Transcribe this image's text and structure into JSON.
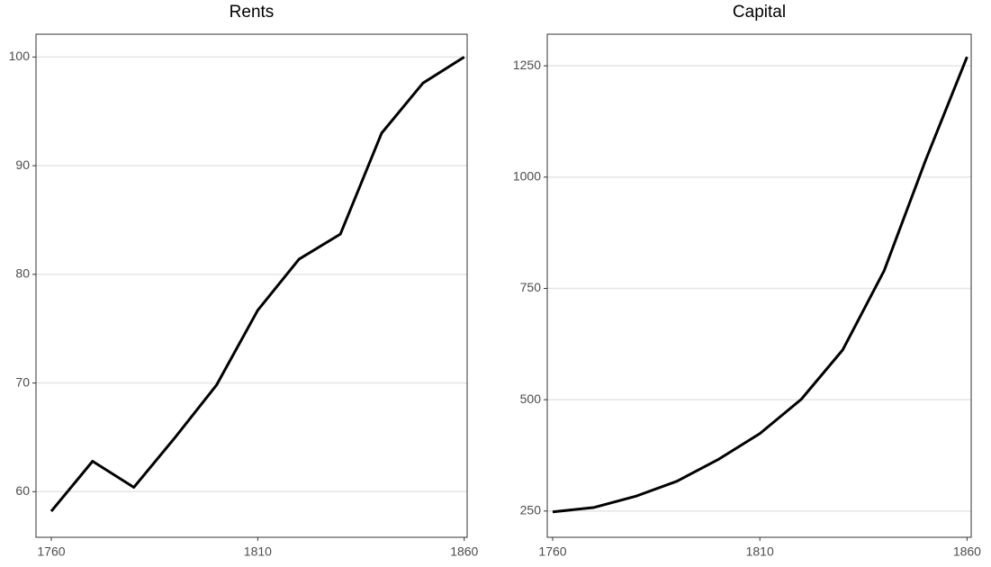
{
  "chart_data": [
    {
      "type": "line",
      "title": "Rents",
      "x": [
        1760,
        1770,
        1780,
        1790,
        1800,
        1810,
        1820,
        1830,
        1840,
        1850,
        1860
      ],
      "series": [
        {
          "color": "#000000",
          "values": [
            58.2,
            62.8,
            60.4,
            65.0,
            69.8,
            76.7,
            81.4,
            83.7,
            93.0,
            97.6,
            100
          ]
        }
      ],
      "xlim": [
        1756.3,
        1860.7
      ],
      "xticks": [
        1760,
        1810,
        1860
      ],
      "ylim": [
        55.8,
        102.1
      ],
      "yticks": [
        60,
        70,
        80,
        90,
        100
      ],
      "grid": true
    },
    {
      "type": "line",
      "title": "Capital",
      "x": [
        1760,
        1770,
        1780,
        1790,
        1800,
        1810,
        1820,
        1830,
        1840,
        1850,
        1860
      ],
      "series": [
        {
          "color": "#000000",
          "values": [
            248,
            258,
            283,
            317,
            366,
            424,
            501,
            612,
            790,
            1038,
            1270
          ]
        }
      ],
      "xlim": [
        1758.7,
        1861
      ],
      "xticks": [
        1760,
        1810,
        1860
      ],
      "ylim": [
        191,
        1321
      ],
      "yticks": [
        250,
        500,
        750,
        1000,
        1250
      ],
      "grid": true
    }
  ]
}
